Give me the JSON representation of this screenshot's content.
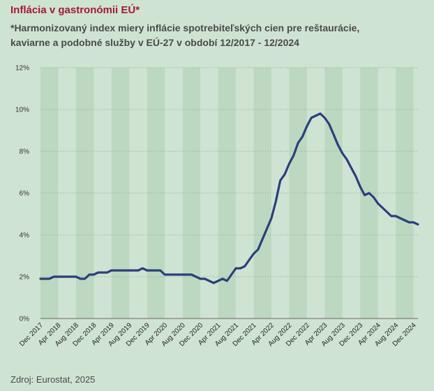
{
  "header": {
    "title": "Inflácia v gastronómii EÚ*",
    "subtitle_line1": "*Harmonizovaný index miery inflácie spotrebiteľských cien pre reštaurácie,",
    "subtitle_line2": "kaviarne a podobné služby v EÚ-27 v období 12/2017 - 12/2024"
  },
  "footer": {
    "source": "Zdroj: Eurostat, 2025"
  },
  "colors": {
    "background": "#cfe3d3",
    "band": "#bdd8c0",
    "line": "#2b3f7c",
    "title": "#a31a35"
  },
  "chart_data": {
    "type": "line",
    "title": "Inflácia v gastronómii EÚ*",
    "xlabel": "",
    "ylabel": "",
    "ylim": [
      0,
      12
    ],
    "yticks": [
      0,
      2,
      4,
      6,
      8,
      10,
      12
    ],
    "ytick_labels": [
      "0%",
      "2%",
      "4%",
      "6%",
      "8%",
      "10%",
      "12%"
    ],
    "grid": true,
    "legend": "none",
    "x_start": "Dec 2017",
    "x_tick_labels": [
      "Dec 2017",
      "Apr 2018",
      "Aug 2018",
      "Dec 2018",
      "Apr 2019",
      "Aug 2019",
      "Dec 2019",
      "Apr 2020",
      "Aug 2020",
      "Dec 2020",
      "Apr 2021",
      "Aug 2021",
      "Dec 2021",
      "Apr 2022",
      "Aug 2022",
      "Dec 2022",
      "Apr 2023",
      "Aug 2023",
      "Dec 2023",
      "Apr 2024",
      "Aug 2024",
      "Dec 2024"
    ],
    "series": [
      {
        "name": "",
        "values": [
          1.9,
          1.9,
          1.9,
          2.0,
          2.0,
          2.0,
          2.0,
          2.0,
          2.0,
          1.9,
          1.9,
          2.1,
          2.1,
          2.2,
          2.2,
          2.2,
          2.3,
          2.3,
          2.3,
          2.3,
          2.3,
          2.3,
          2.3,
          2.4,
          2.3,
          2.3,
          2.3,
          2.3,
          2.1,
          2.1,
          2.1,
          2.1,
          2.1,
          2.1,
          2.1,
          2.0,
          1.9,
          1.9,
          1.8,
          1.7,
          1.8,
          1.9,
          1.8,
          2.1,
          2.4,
          2.4,
          2.5,
          2.8,
          3.1,
          3.3,
          3.8,
          4.3,
          4.8,
          5.6,
          6.6,
          6.9,
          7.4,
          7.8,
          8.4,
          8.7,
          9.2,
          9.6,
          9.7,
          9.8,
          9.6,
          9.3,
          8.8,
          8.3,
          7.9,
          7.6,
          7.2,
          6.8,
          6.3,
          5.9,
          6.0,
          5.8,
          5.5,
          5.3,
          5.1,
          4.9,
          4.9,
          4.8,
          4.7,
          4.6,
          4.6,
          4.5
        ]
      }
    ]
  }
}
